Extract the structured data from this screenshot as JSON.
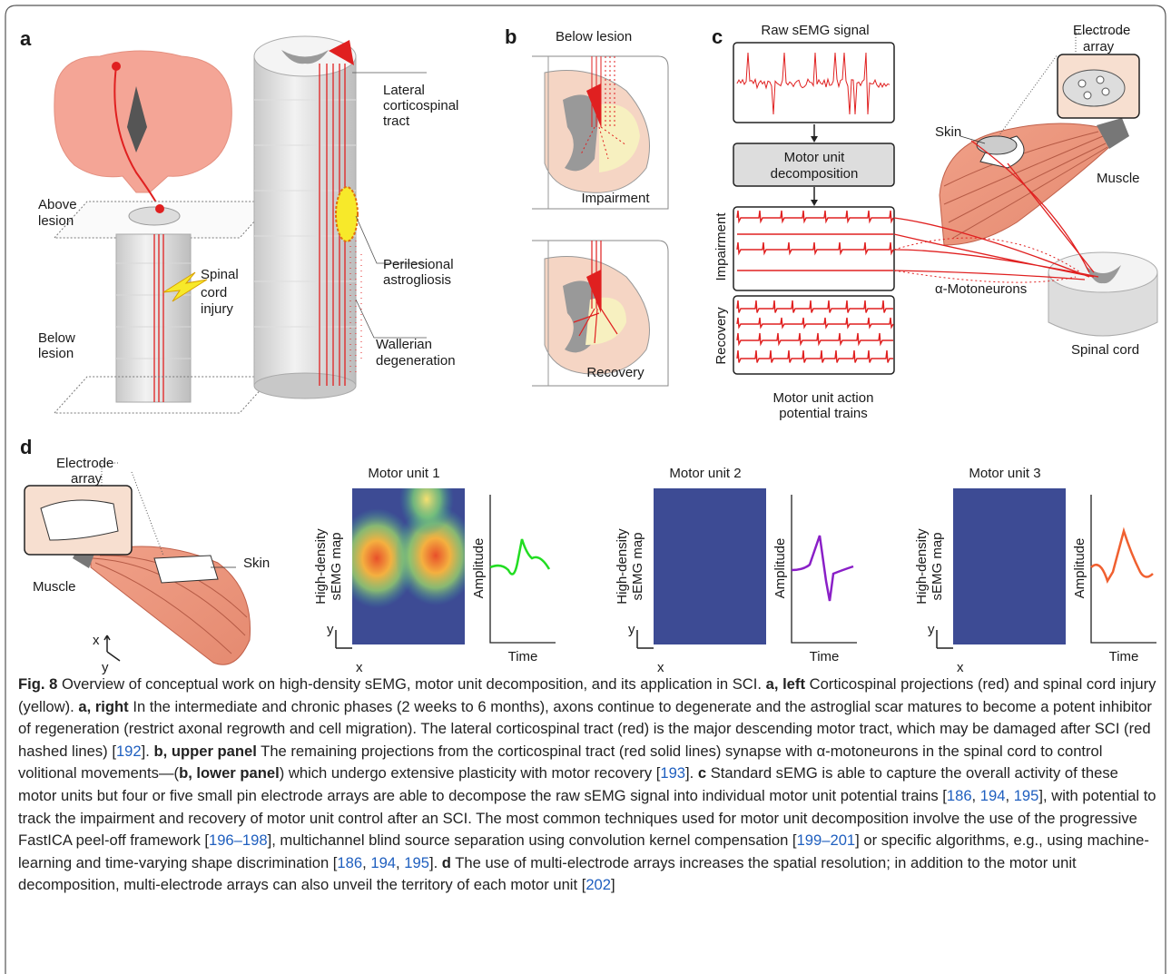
{
  "panels": {
    "a": {
      "label": "a",
      "above_lesion": [
        "Above",
        "lesion"
      ],
      "below_lesion": [
        "Below",
        "lesion"
      ],
      "injury": [
        "Spinal",
        "cord",
        "injury"
      ],
      "tract": [
        "Lateral",
        "corticospinal",
        "tract"
      ],
      "astrogliosis": [
        "Perilesional",
        "astrogliosis"
      ],
      "wallerian": [
        "Wallerian",
        "degeneration"
      ]
    },
    "b": {
      "label": "b",
      "title": "Below lesion",
      "impairment": "Impairment",
      "recovery": "Recovery"
    },
    "c": {
      "label": "c",
      "raw": "Raw sEMG signal",
      "decomposition": [
        "Motor unit",
        "decomposition"
      ],
      "impairment": "Impairment",
      "recovery": "Recovery",
      "trains": [
        "Motor unit action",
        "potential trains"
      ],
      "electrode": [
        "Electrode",
        "array"
      ],
      "skin": "Skin",
      "muscle": "Muscle",
      "motoneurons": "α-Motoneurons",
      "spinal_cord": "Spinal cord"
    },
    "d": {
      "label": "d",
      "electrode": [
        "Electrode",
        "array"
      ],
      "skin": "Skin",
      "muscle": "Muscle",
      "axis_x": "x",
      "axis_y": "y",
      "units": [
        {
          "title": "Motor unit 1",
          "map_label": [
            "High-density",
            "sEMG map"
          ],
          "amplitude": "Amplitude",
          "time": "Time",
          "x": "x",
          "y": "y"
        },
        {
          "title": "Motor unit 2",
          "map_label": [
            "High-density",
            "sEMG map"
          ],
          "amplitude": "Amplitude",
          "time": "Time",
          "x": "x",
          "y": "y"
        },
        {
          "title": "Motor unit 3",
          "map_label": [
            "High-density",
            "sEMG map"
          ],
          "amplitude": "Amplitude",
          "time": "Time",
          "x": "x",
          "y": "y"
        }
      ]
    }
  },
  "caption": [
    {
      "text": "Fig. 8",
      "style": "bold"
    },
    {
      "text": " Overview of conceptual work on high-density sEMG, motor unit decomposition, and its application in SCI. "
    },
    {
      "text": "a, left",
      "style": "bold"
    },
    {
      "text": " Corticospinal projections (red) and spinal cord injury (yellow). "
    },
    {
      "text": "a, right",
      "style": "bold"
    },
    {
      "text": " In the intermediate and chronic phases (2 weeks to 6 months), axons continue to degenerate and the astroglial scar matures to become a potent inhibitor of regeneration (restrict axonal regrowth and cell migration). The lateral corticospinal tract (red) is the major descending motor tract, which may be damaged after SCI (red hashed lines) ["
    },
    {
      "text": "192",
      "style": "link"
    },
    {
      "text": "]. "
    },
    {
      "text": "b, upper panel",
      "style": "bold"
    },
    {
      "text": " The remaining projections from the corticospinal tract (red solid lines) synapse with α-motoneurons in the spinal cord to control volitional movements—("
    },
    {
      "text": "b, lower panel",
      "style": "bold"
    },
    {
      "text": ") which undergo extensive plasticity with motor recovery ["
    },
    {
      "text": "193",
      "style": "link"
    },
    {
      "text": "]. "
    },
    {
      "text": "c",
      "style": "bold"
    },
    {
      "text": " Standard sEMG is able to capture the overall activity of these motor units but four or five small pin electrode arrays are able to decompose the raw sEMG signal into individual motor unit potential trains ["
    },
    {
      "text": "186",
      "style": "link"
    },
    {
      "text": ", "
    },
    {
      "text": "194",
      "style": "link"
    },
    {
      "text": ", "
    },
    {
      "text": "195",
      "style": "link"
    },
    {
      "text": "], with potential to track the impairment and recovery of motor unit control after an SCI. The most common techniques used for motor unit decomposition involve the use of the progressive FastICA peel-off framework ["
    },
    {
      "text": "196–198",
      "style": "link"
    },
    {
      "text": "], multichannel blind source separation using convolution kernel compensation ["
    },
    {
      "text": "199–201",
      "style": "link"
    },
    {
      "text": "] or specific algorithms, e.g., using machine-learning and time-varying shape discrimination ["
    },
    {
      "text": "186",
      "style": "link"
    },
    {
      "text": ", "
    },
    {
      "text": "194",
      "style": "link"
    },
    {
      "text": ", "
    },
    {
      "text": "195",
      "style": "link"
    },
    {
      "text": "]. "
    },
    {
      "text": "d",
      "style": "bold"
    },
    {
      "text": " The use of multi-electrode arrays increases the spatial resolution; in addition to the motor unit decomposition, multi-electrode arrays can also unveil the territory of each motor unit ["
    },
    {
      "text": "202",
      "style": "link"
    },
    {
      "text": "]"
    }
  ]
}
